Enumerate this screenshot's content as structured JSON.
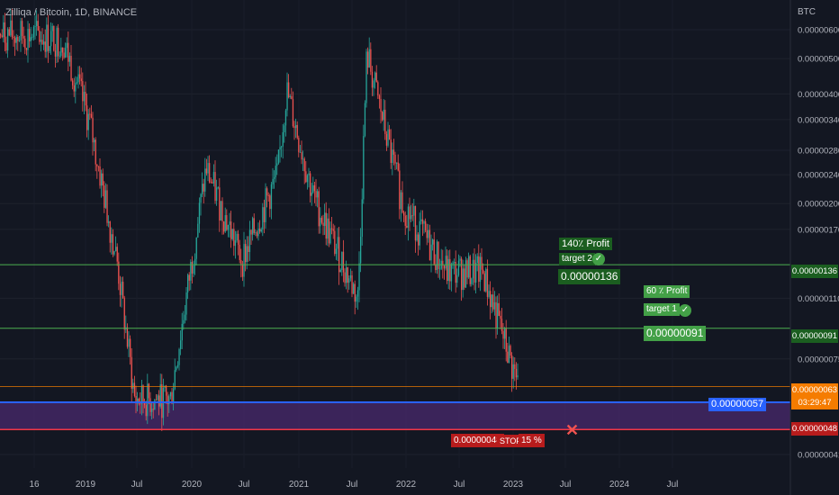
{
  "header": {
    "title": "Zilliqa / Bitcoin, 1D, BINANCE",
    "currency": "BTC"
  },
  "colors": {
    "background": "#131722",
    "up": "#26a69a",
    "down": "#ef5350",
    "target_line": "#4caf50",
    "current_line": "#f57c00",
    "support_line": "#2962ff",
    "stop_line": "#f23645",
    "zone": "#4a2a6e"
  },
  "price_axis": {
    "ticks": [
      "0.00000600",
      "0.00000500",
      "0.00000400",
      "0.00000340",
      "0.00000280",
      "0.00000240",
      "0.00000200",
      "0.00000170",
      "0.00000110",
      "0.00000075",
      "0.00000041"
    ],
    "tick_values": [
      600,
      500,
      400,
      340,
      280,
      240,
      200,
      170,
      110,
      75,
      41
    ],
    "scale": "log"
  },
  "time_axis": {
    "labels": [
      "16",
      "2019",
      "Jul",
      "2020",
      "Jul",
      "2021",
      "Jul",
      "2022",
      "Jul",
      "2023",
      "Jul",
      "2024",
      "Jul"
    ]
  },
  "chart_data": {
    "type": "candlestick",
    "title": "Zilliqa / Bitcoin, 1D, BINANCE",
    "y_unit": "BTC",
    "y_scale": "log",
    "ylim": [
      3.8e-07,
      6.8e-06
    ],
    "x_labels": [
      "16",
      "2019",
      "Jul",
      "2020",
      "Jul",
      "2021",
      "Jul",
      "2022",
      "Jul",
      "2023",
      "Jul",
      "2024",
      "Jul"
    ],
    "price_path_approx": [
      {
        "x": "2018-12",
        "price": 5.8e-06
      },
      {
        "x": "2019-03",
        "price": 5.6e-06
      },
      {
        "x": "2019-06",
        "price": 3.3e-06
      },
      {
        "x": "2019-09",
        "price": 1.4e-06
      },
      {
        "x": "2019-11",
        "price": 5.8e-07
      },
      {
        "x": "2020-03",
        "price": 5.8e-07
      },
      {
        "x": "2020-07",
        "price": 2.5e-06
      },
      {
        "x": "2020-11",
        "price": 1.4e-06
      },
      {
        "x": "2021-03",
        "price": 2.4e-06
      },
      {
        "x": "2021-04",
        "price": 4.1e-06
      },
      {
        "x": "2021-07",
        "price": 2.1e-06
      },
      {
        "x": "2021-12",
        "price": 1.1e-06
      },
      {
        "x": "2022-01",
        "price": 5.2e-06
      },
      {
        "x": "2022-05",
        "price": 2e-06
      },
      {
        "x": "2022-10",
        "price": 1.3e-06
      },
      {
        "x": "2023-02",
        "price": 1.3e-06
      },
      {
        "x": "2023-06",
        "price": 6.3e-07
      }
    ],
    "levels": [
      {
        "name": "target 2",
        "value": 1.36e-06
      },
      {
        "name": "target 1",
        "value": 9.1e-07
      },
      {
        "name": "current",
        "value": 6.3e-07
      },
      {
        "name": "support",
        "value": 5.7e-07
      },
      {
        "name": "stop",
        "value": 4.8e-07
      }
    ]
  },
  "annotations": {
    "target2_profit": "140٪ Profit",
    "target2_label": "target 2",
    "target2_price": "0.00000136",
    "target1_profit": "60 ٪ Profit",
    "target1_label": "target 1",
    "target1_price": "0.00000091",
    "support_price": "0.00000057",
    "stop_price": "0.00000048",
    "stop_label": "STOP",
    "stop_pct": "15 %"
  },
  "price_labels": {
    "target2": "0.00000136",
    "target1": "0.00000091",
    "current": "0.00000063",
    "countdown": "03:29:47",
    "stop": "0.00000048"
  }
}
